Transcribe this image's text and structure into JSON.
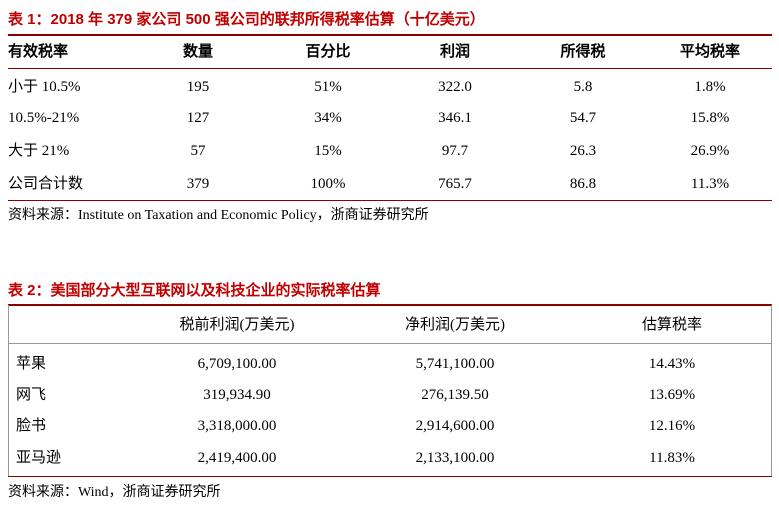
{
  "table1": {
    "title": "表 1：2018 年 379 家公司 500 强公司的联邦所得税率估算（十亿美元）",
    "header": [
      "有效税率",
      "数量",
      "百分比",
      "利润",
      "所得税",
      "平均税率"
    ],
    "rows": [
      [
        "小于 10.5%",
        "195",
        "51%",
        "322.0",
        "5.8",
        "1.8%"
      ],
      [
        "10.5%-21%",
        "127",
        "34%",
        "346.1",
        "54.7",
        "15.8%"
      ],
      [
        "大于 21%",
        "57",
        "15%",
        "97.7",
        "26.3",
        "26.9%"
      ],
      [
        "公司合计数",
        "379",
        "100%",
        "765.7",
        "86.8",
        "11.3%"
      ]
    ],
    "source": "资料来源：Institute on Taxation and Economic Policy，浙商证券研究所"
  },
  "table2": {
    "title": "表 2：美国部分大型互联网以及科技企业的实际税率估算",
    "header": [
      "",
      "税前利润(万美元)",
      "净利润(万美元)",
      "估算税率"
    ],
    "rows": [
      [
        "苹果",
        "6,709,100.00",
        "5,741,100.00",
        "14.43%"
      ],
      [
        "网飞",
        "319,934.90",
        "276,139.50",
        "13.69%"
      ],
      [
        "脸书",
        "3,318,000.00",
        "2,914,600.00",
        "12.16%"
      ],
      [
        "亚马逊",
        "2,419,400.00",
        "2,133,100.00",
        "11.83%"
      ]
    ],
    "source": "资料来源：Wind，浙商证券研究所"
  }
}
